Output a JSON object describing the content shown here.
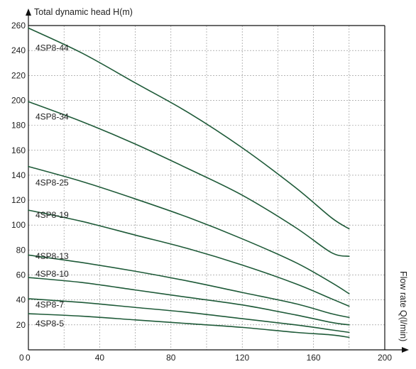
{
  "colors": {
    "curve": "#1e5a38",
    "axis": "#111111",
    "grid": "#8a8a8a",
    "background": "#ffffff"
  },
  "chart_data": {
    "type": "line",
    "title": "",
    "xlabel": "Flow rate Q(l/min)",
    "ylabel": "Total dynamic head H(m)",
    "xlim": [
      0,
      200
    ],
    "ylim": [
      0,
      260
    ],
    "grid": true,
    "legend": "none",
    "origin_labels": [
      "0",
      "0"
    ],
    "x_ticks": [
      0,
      20,
      40,
      60,
      80,
      100,
      120,
      140,
      160,
      180,
      200
    ],
    "x_tick_labels": [
      "",
      "40",
      "80",
      "120",
      "160",
      "200"
    ],
    "x_tick_label_values": [
      0,
      40,
      80,
      120,
      160,
      200
    ],
    "y_ticks": [
      20,
      40,
      60,
      80,
      100,
      120,
      140,
      160,
      180,
      200,
      220,
      240,
      260
    ],
    "y_tick_labels": [
      "20",
      "40",
      "60",
      "80",
      "100",
      "120",
      "140",
      "160",
      "180",
      "200",
      "220",
      "240",
      "260"
    ],
    "series": [
      {
        "name": "4SP8-44",
        "x": [
          0,
          30,
          60,
          90,
          120,
          150,
          170,
          180
        ],
        "values": [
          258,
          238,
          214,
          190,
          162,
          130,
          106,
          97
        ]
      },
      {
        "name": "4SP8-34",
        "x": [
          0,
          30,
          60,
          90,
          120,
          150,
          170,
          180
        ],
        "values": [
          199,
          183,
          165,
          145,
          124,
          98,
          78,
          75
        ]
      },
      {
        "name": "4SP8-25",
        "x": [
          0,
          30,
          60,
          90,
          120,
          150,
          170,
          180
        ],
        "values": [
          147,
          135,
          121,
          106,
          89,
          70,
          54,
          45
        ]
      },
      {
        "name": "4SP8-19",
        "x": [
          0,
          30,
          60,
          90,
          120,
          150,
          170,
          180
        ],
        "values": [
          112,
          103,
          92,
          81,
          68,
          53,
          41,
          35
        ]
      },
      {
        "name": "4SP8-13",
        "x": [
          0,
          30,
          60,
          90,
          120,
          150,
          170,
          180
        ],
        "values": [
          76,
          70,
          63,
          55,
          46,
          37,
          29,
          26
        ]
      },
      {
        "name": "4SP8-10",
        "x": [
          0,
          30,
          60,
          90,
          120,
          150,
          170,
          180
        ],
        "values": [
          58,
          54,
          48,
          42,
          36,
          28,
          22,
          20
        ]
      },
      {
        "name": "4SP8-7",
        "x": [
          0,
          30,
          60,
          90,
          120,
          150,
          170,
          180
        ],
        "values": [
          41,
          38,
          34,
          30,
          25,
          20,
          16,
          14
        ]
      },
      {
        "name": "4SP8-5",
        "x": [
          0,
          30,
          60,
          90,
          120,
          150,
          170,
          180
        ],
        "values": [
          29,
          27,
          24,
          21,
          18,
          14,
          12,
          10
        ]
      }
    ],
    "series_label_positions_y": [
      242,
      187,
      134,
      108,
      75,
      61,
      36,
      21
    ]
  }
}
